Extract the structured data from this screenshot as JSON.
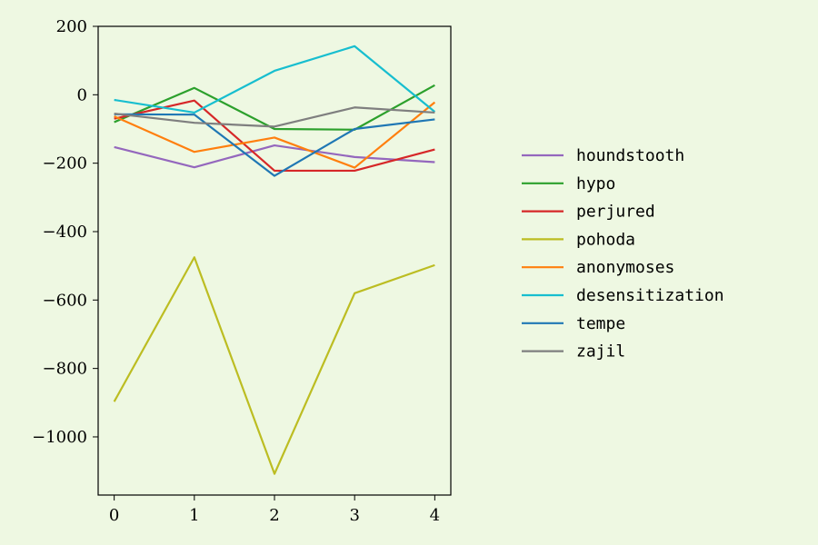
{
  "chart_data": {
    "type": "line",
    "title": "",
    "xlabel": "",
    "ylabel": "",
    "x": [
      0,
      1,
      2,
      3,
      4
    ],
    "xticks": [
      0,
      1,
      2,
      3,
      4
    ],
    "yticks": [
      200,
      0,
      -200,
      -400,
      -600,
      -800,
      -1000
    ],
    "xlim": [
      -0.2,
      4.2
    ],
    "ylim": [
      -1170,
      200
    ],
    "grid": false,
    "legend_placement": "outside right",
    "series": [
      {
        "name": "houndstooth",
        "color": "#9467bd",
        "values": [
          -153,
          -212,
          -148,
          -182,
          -197
        ]
      },
      {
        "name": "hypo",
        "color": "#2ca02c",
        "values": [
          -80,
          20,
          -100,
          -102,
          28
        ]
      },
      {
        "name": "perjured",
        "color": "#d62728",
        "values": [
          -70,
          -17,
          -222,
          -222,
          -160
        ]
      },
      {
        "name": "pohoda",
        "color": "#bcbd22",
        "values": [
          -897,
          -475,
          -1108,
          -580,
          -498
        ]
      },
      {
        "name": "anonymoses",
        "color": "#ff7f0e",
        "values": [
          -63,
          -167,
          -125,
          -213,
          -22
        ]
      },
      {
        "name": "desensitization",
        "color": "#17becf",
        "values": [
          -15,
          -52,
          70,
          142,
          -50
        ]
      },
      {
        "name": "tempe",
        "color": "#1f77b4",
        "values": [
          -57,
          -58,
          -237,
          -100,
          -72
        ]
      },
      {
        "name": "zajil",
        "color": "#7f7f7f",
        "values": [
          -55,
          -82,
          -93,
          -37,
          -52
        ]
      }
    ]
  }
}
